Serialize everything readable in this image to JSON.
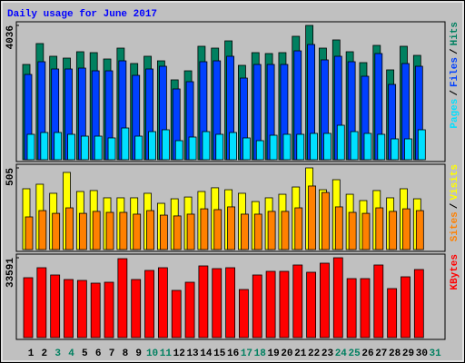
{
  "chart_data": [
    {
      "type": "bar",
      "title": "Daily usage for June 2017",
      "ylim": [
        0,
        4036
      ],
      "yticks": [
        4036
      ],
      "legend_separator": "/",
      "series": [
        {
          "name": "Hits",
          "color": "#008060",
          "values": [
            2863,
            3491,
            3109,
            3054,
            3245,
            3218,
            3027,
            3354,
            2891,
            3109,
            2972,
            2400,
            2672,
            3409,
            3354,
            3572,
            2836,
            3218,
            3191,
            3218,
            3709,
            4036,
            3354,
            3600,
            3245,
            2918,
            3436,
            2700,
            3409,
            3136,
            null
          ]
        },
        {
          "name": "Files",
          "color": "#0040ff",
          "values": [
            2563,
            2945,
            2727,
            2727,
            2754,
            2672,
            2672,
            2972,
            2536,
            2727,
            2809,
            2127,
            2345,
            2945,
            2972,
            3109,
            2454,
            2863,
            2863,
            2863,
            3272,
            3463,
            3000,
            3109,
            2945,
            2509,
            3191,
            2263,
            2891,
            2809,
            null
          ]
        },
        {
          "name": "Pages",
          "color": "#00e0ff",
          "values": [
            764,
            818,
            818,
            764,
            709,
            709,
            655,
            954,
            709,
            845,
            900,
            573,
            682,
            845,
            764,
            818,
            655,
            573,
            736,
            764,
            764,
            791,
            791,
            1036,
            845,
            791,
            764,
            627,
            627,
            900,
            null
          ]
        }
      ]
    },
    {
      "type": "bar",
      "ylim": [
        0,
        505
      ],
      "yticks": [
        505
      ],
      "legend_separator": "/",
      "series": [
        {
          "name": "Visits",
          "color": "#ffff00",
          "values": [
            376,
            404,
            348,
            477,
            359,
            365,
            320,
            320,
            320,
            348,
            286,
            314,
            325,
            359,
            382,
            370,
            348,
            297,
            320,
            342,
            387,
            505,
            370,
            432,
            342,
            303,
            365,
            320,
            376,
            314,
            null
          ]
        },
        {
          "name": "Sites",
          "color": "#ff8000",
          "values": [
            202,
            241,
            224,
            258,
            224,
            236,
            230,
            230,
            219,
            241,
            213,
            208,
            219,
            252,
            247,
            264,
            219,
            219,
            236,
            236,
            258,
            393,
            353,
            264,
            230,
            224,
            258,
            236,
            252,
            241,
            null
          ]
        }
      ]
    },
    {
      "type": "bar",
      "ylim": [
        0,
        33591
      ],
      "yticks": [
        33591
      ],
      "categories": [
        "1",
        "2",
        "3",
        "4",
        "5",
        "6",
        "7",
        "8",
        "9",
        "10",
        "11",
        "12",
        "13",
        "14",
        "15",
        "16",
        "17",
        "18",
        "19",
        "20",
        "21",
        "22",
        "23",
        "24",
        "25",
        "26",
        "27",
        "28",
        "29",
        "30",
        "31"
      ],
      "category_colors": [
        "#000000",
        "#000000",
        "#008060",
        "#008060",
        "#000000",
        "#000000",
        "#000000",
        "#000000",
        "#000000",
        "#008060",
        "#008060",
        "#000000",
        "#000000",
        "#000000",
        "#000000",
        "#000000",
        "#008060",
        "#008060",
        "#000000",
        "#000000",
        "#000000",
        "#000000",
        "#000000",
        "#008060",
        "#008060",
        "#000000",
        "#000000",
        "#000000",
        "#000000",
        "#000000",
        "#008060"
      ],
      "series": [
        {
          "name": "KBytes",
          "color": "#ff0000",
          "values": [
            25194,
            29393,
            26339,
            24430,
            24048,
            22903,
            23285,
            33200,
            24430,
            28248,
            29393,
            19850,
            23285,
            30156,
            29011,
            29393,
            20231,
            26339,
            27866,
            27866,
            30538,
            27484,
            31301,
            33591,
            24812,
            24812,
            30538,
            20613,
            25575,
            28629,
            null
          ]
        }
      ]
    }
  ]
}
